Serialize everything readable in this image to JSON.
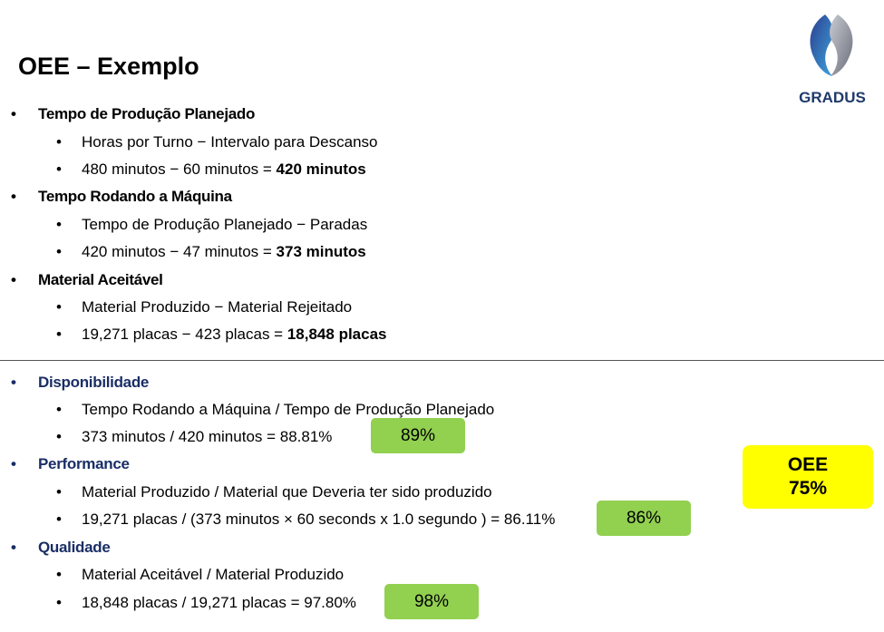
{
  "title": "OEE – Exemplo",
  "logo": {
    "text": "GRADUS"
  },
  "bullet": "•",
  "sections_top": [
    {
      "heading": "Tempo de Produção Planejado",
      "line1": "Horas por Turno − Intervalo para Descanso",
      "line2_prefix": "480 minutos − 60 minutos = ",
      "line2_bold": "420 minutos"
    },
    {
      "heading": "Tempo Rodando a Máquina",
      "line1": "Tempo de Produção Planejado − Paradas",
      "line2_prefix": "420 minutos − 47 minutos = ",
      "line2_bold": "373 minutos"
    },
    {
      "heading": "Material Aceitável",
      "line1": "Material Produzido − Material Rejeitado",
      "line2_prefix": "19,271 placas − 423 placas = ",
      "line2_bold": "18,848 placas"
    }
  ],
  "sections_bottom": [
    {
      "heading": "Disponibilidade",
      "line1": "Tempo Rodando a Máquina / Tempo de Produção Planejado",
      "line2": "373 minutos / 420 minutos = 88.81%",
      "badge": "89%"
    },
    {
      "heading": "Performance",
      "line1": "Material Produzido / Material que Deveria ter sido produzido",
      "line2": "19,271 placas / (373 minutos × 60 seconds x 1.0 segundo ) = 86.11%",
      "badge": "86%"
    },
    {
      "heading": "Qualidade",
      "line1": "Material Aceitável / Material Produzido",
      "line2": "18,848 placas / 19,271 placas = 97.80%",
      "badge": "98%"
    }
  ],
  "oee": {
    "label": "OEE",
    "value": "75%"
  },
  "colors": {
    "heading_blue": "#1a2e66",
    "badge_green": "#92d050",
    "oee_yellow": "#ffff00"
  }
}
